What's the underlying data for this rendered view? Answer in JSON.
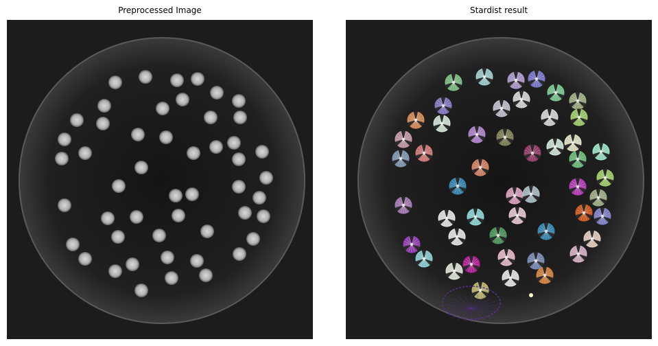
{
  "panels": [
    {
      "title": "Preprocessed Image"
    },
    {
      "title": "Stardist result"
    }
  ],
  "colors": {
    "background": "#1c1c1c",
    "dish_fill": "#2a2a2a",
    "dish_rim": "#6a6a6a",
    "blob": "#bdbdbd",
    "false_detection_outline": "#5a2d91",
    "small_artifact": "#fffcd0"
  },
  "icons": [
    "petri-dish",
    "colony-blob",
    "segmentation-star-polygon"
  ]
}
